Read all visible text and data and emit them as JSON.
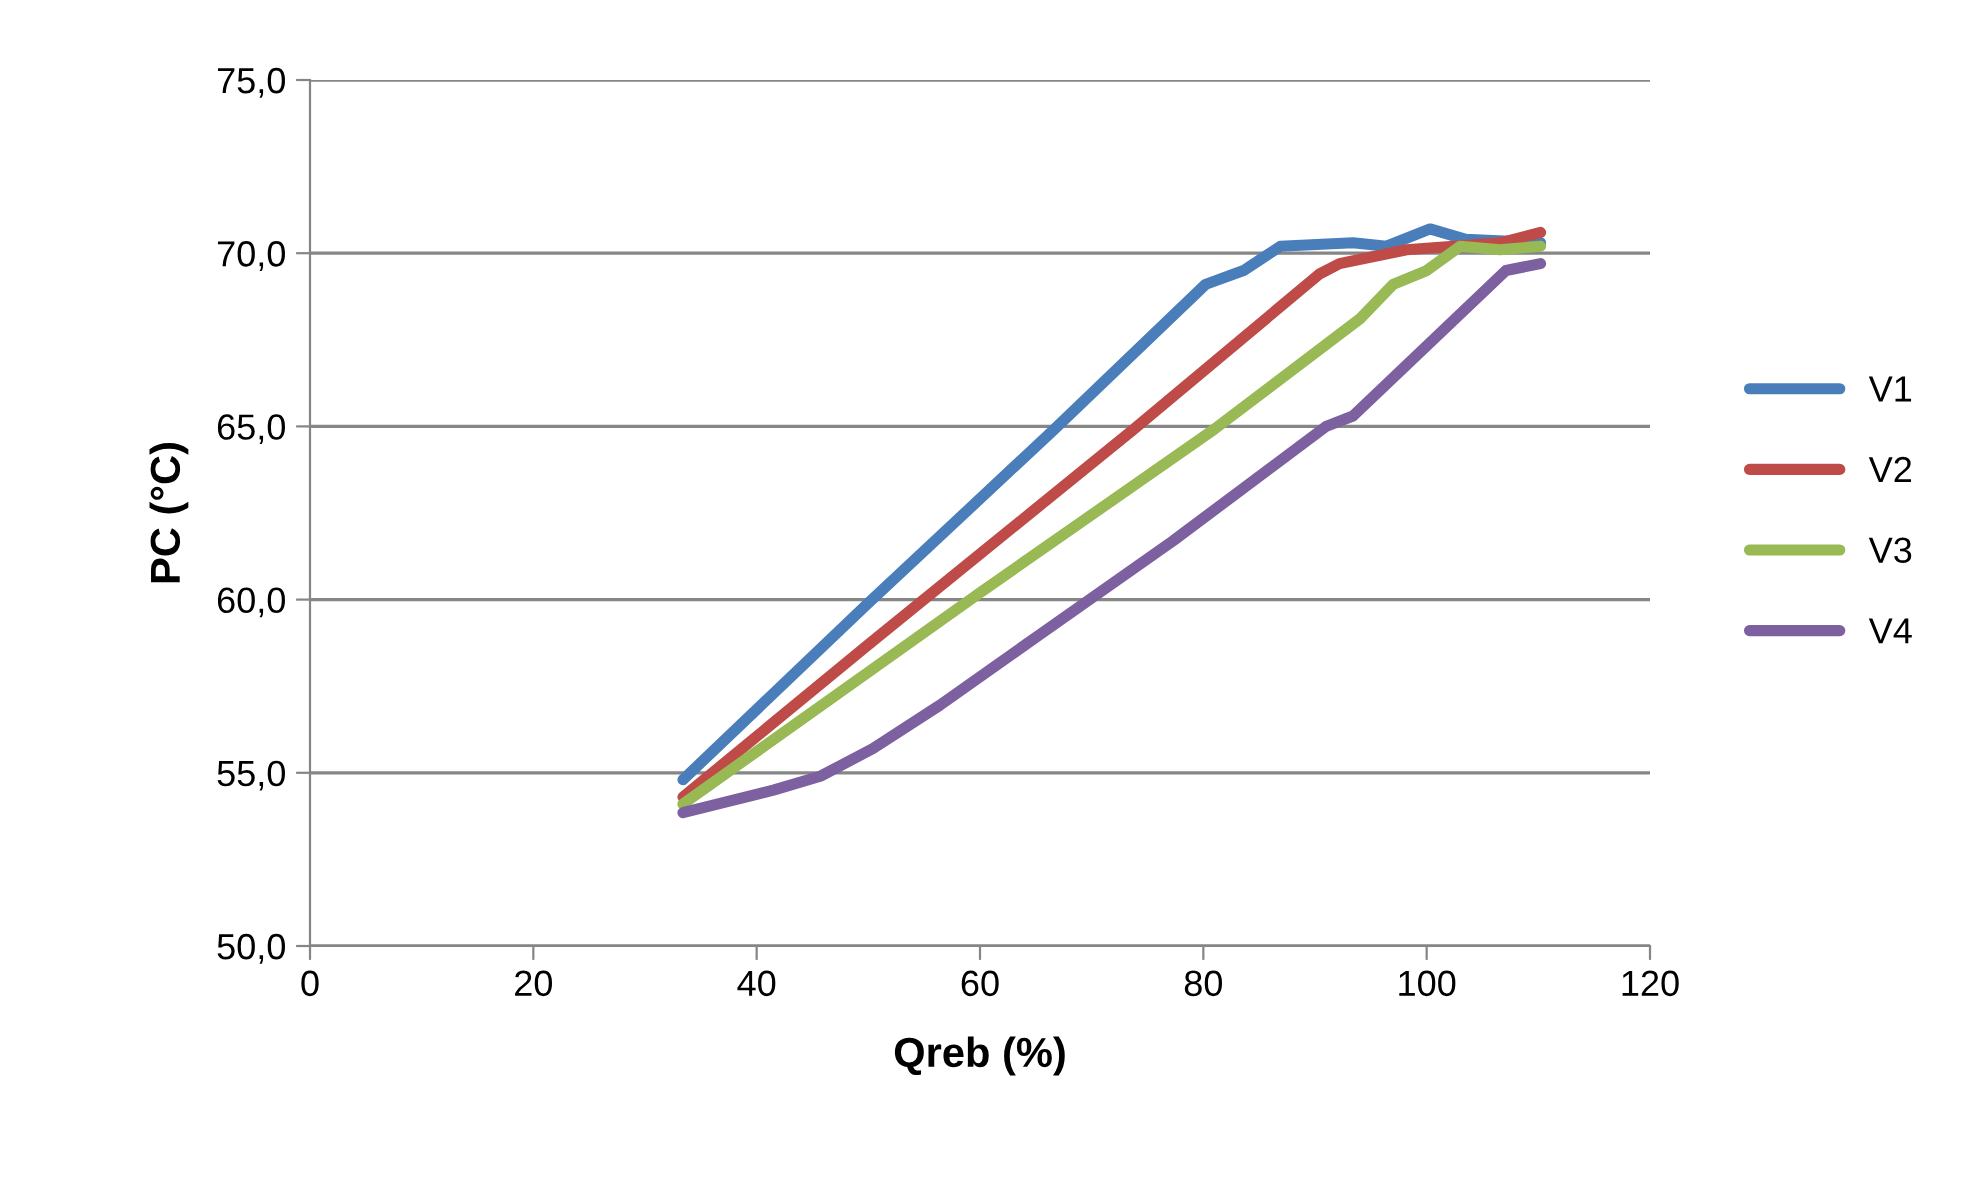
{
  "chart_data": {
    "type": "line",
    "xlabel": "Qreb (%)",
    "ylabel": "PC (°C)",
    "xlim": [
      0,
      120
    ],
    "xticks": [
      0,
      20,
      40,
      60,
      80,
      100,
      120
    ],
    "ylim": [
      50,
      75
    ],
    "yticks": [
      {
        "value": 50,
        "label": "50,0"
      },
      {
        "value": 55,
        "label": "55,0"
      },
      {
        "value": 60,
        "label": "60,0"
      },
      {
        "value": 65,
        "label": "65,0"
      },
      {
        "value": 70,
        "label": "70,0"
      },
      {
        "value": 75,
        "label": "75,0"
      }
    ],
    "grid": "y",
    "legend": "right",
    "marker": "none",
    "line_style": "solid",
    "series": [
      {
        "name": "V1",
        "color": "#4a7ebb",
        "x": [
          33.4,
          50,
          66.6,
          80.2,
          83.6,
          86.9,
          93.4,
          96.4,
          100.3,
          103.5,
          110.2
        ],
        "values": [
          54.8,
          59.9,
          64.9,
          69.1,
          69.5,
          70.2,
          70.3,
          70.2,
          70.7,
          70.4,
          70.3
        ]
      },
      {
        "name": "V2",
        "color": "#be4b48",
        "x": [
          33.4,
          50,
          73.7,
          90.4,
          92.2,
          98.2,
          106.6,
          110.2
        ],
        "values": [
          54.3,
          58.7,
          64.9,
          69.4,
          69.7,
          70.1,
          70.3,
          70.6
        ]
      },
      {
        "name": "V3",
        "color": "#98b954",
        "x": [
          33.4,
          60,
          80.9,
          94.0,
          97.0,
          100.0,
          103.0,
          106.6,
          110.2
        ],
        "values": [
          54.1,
          60.2,
          64.9,
          68.1,
          69.1,
          69.5,
          70.2,
          70.1,
          70.2
        ]
      },
      {
        "name": "V4",
        "color": "#7d60a0",
        "x": [
          33.4,
          41.5,
          45.7,
          50.4,
          56.4,
          65.4,
          77.3,
          91.0,
          93.4,
          107.1,
          110.2
        ],
        "values": [
          53.85,
          54.5,
          54.9,
          55.7,
          56.95,
          59.0,
          61.7,
          65.0,
          65.3,
          69.5,
          69.7
        ]
      }
    ]
  }
}
